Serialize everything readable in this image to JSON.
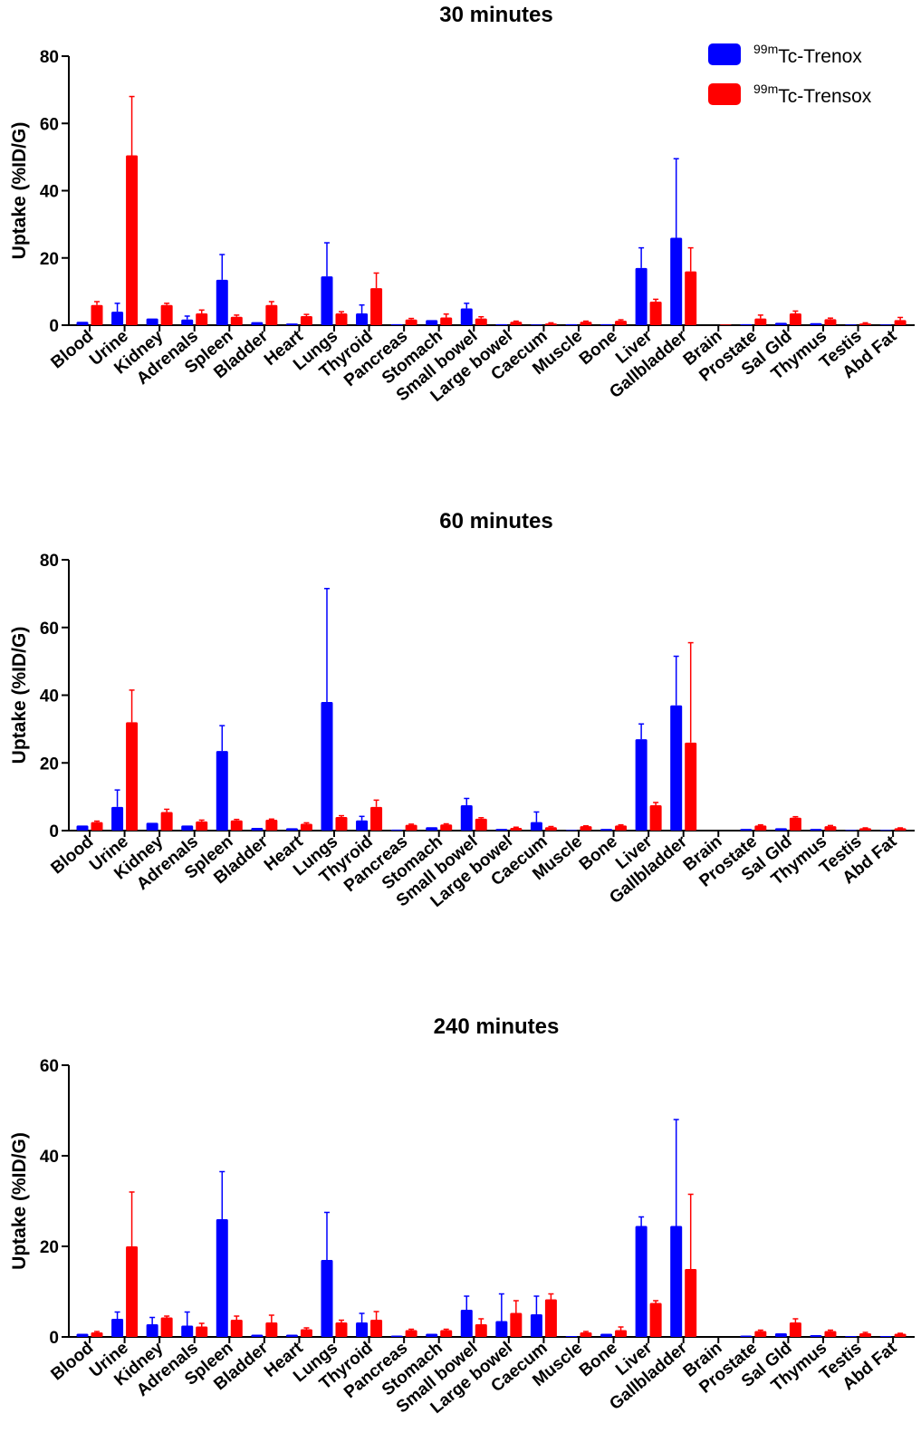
{
  "colors": {
    "trenox": "#0000ff",
    "trensox": "#ff0000",
    "axis": "#000000"
  },
  "legend": [
    {
      "sup": "99m",
      "name": "Tc-Trenox",
      "color": "#0000ff"
    },
    {
      "sup": "99m",
      "name": "Tc-Trensox",
      "color": "#ff0000"
    }
  ],
  "chart_data": [
    {
      "type": "bar",
      "title": "30 minutes",
      "xlabel": "",
      "ylabel": "Uptake (%ID/G)",
      "ylim": [
        0,
        80
      ],
      "yticks": [
        0,
        20,
        40,
        60,
        80
      ],
      "legend_position": "top-right",
      "categories": [
        "Blood",
        "Urine",
        "Kidney",
        "Adrenals",
        "Spleen",
        "Bladder",
        "Heart",
        "Lungs",
        "Thyroid",
        "Pancreas",
        "Stomach",
        "Small bowel",
        "Large bowel",
        "Caecum",
        "Muscle",
        "Bone",
        "Liver",
        "Gallbladder",
        "Brain",
        "Prostate",
        "Sal Gld",
        "Thymus",
        "Testis",
        "Abd Fat"
      ],
      "series": [
        {
          "name": "99mTc-Trenox",
          "color": "#0000ff",
          "values": [
            1.0,
            4.0,
            2.0,
            1.7,
            13.5,
            0.9,
            0.5,
            14.5,
            3.5,
            0.3,
            1.5,
            5.0,
            0.3,
            0.2,
            0.3,
            0.3,
            17.0,
            26.0,
            0,
            0.3,
            0.7,
            0.6,
            0.2,
            0.2
          ],
          "errors": [
            0,
            2.5,
            0,
            1.0,
            7.5,
            0,
            0,
            10.0,
            2.5,
            0,
            0,
            1.5,
            0,
            0,
            0,
            0,
            6.0,
            23.5,
            0,
            0,
            0,
            0,
            0,
            0
          ]
        },
        {
          "name": "99mTc-Trensox",
          "color": "#ff0000",
          "values": [
            6.0,
            50.5,
            6.0,
            3.5,
            2.5,
            6.0,
            2.7,
            3.5,
            11.0,
            1.7,
            2.3,
            2.0,
            1.0,
            0.5,
            1.0,
            1.3,
            7.0,
            16.0,
            0.2,
            2.0,
            3.5,
            1.8,
            0.5,
            1.5
          ],
          "errors": [
            1.0,
            17.5,
            0.5,
            1.0,
            0.5,
            1.0,
            0.5,
            0.5,
            4.5,
            0.3,
            1.0,
            0.5,
            0.2,
            0.2,
            0.2,
            0.3,
            0.7,
            7.0,
            0,
            1.0,
            0.7,
            0.3,
            0.2,
            0.8
          ]
        }
      ]
    },
    {
      "type": "bar",
      "title": "60 minutes",
      "xlabel": "",
      "ylabel": "Uptake (%ID/G)",
      "ylim": [
        0,
        80
      ],
      "yticks": [
        0,
        20,
        40,
        60,
        80
      ],
      "categories": [
        "Blood",
        "Urine",
        "Kidney",
        "Adrenals",
        "Spleen",
        "Bladder",
        "Heart",
        "Lungs",
        "Thyroid",
        "Pancreas",
        "Stomach",
        "Small bowel",
        "Large bowel",
        "Caecum",
        "Muscle",
        "Bone",
        "Liver",
        "Gallbladder",
        "Brain",
        "Prostate",
        "Sal Gld",
        "Thymus",
        "Testis",
        "Abd Fat"
      ],
      "series": [
        {
          "name": "99mTc-Trenox",
          "color": "#0000ff",
          "values": [
            1.5,
            7.0,
            2.3,
            1.5,
            23.5,
            0.8,
            0.7,
            38.0,
            3.0,
            0.3,
            1.0,
            7.5,
            0.5,
            2.5,
            0.2,
            0.5,
            27.0,
            37.0,
            0,
            0.5,
            0.7,
            0.5,
            0.2,
            0.2
          ],
          "errors": [
            0,
            5.0,
            0,
            0,
            7.5,
            0,
            0,
            33.5,
            1.2,
            0,
            0,
            2.0,
            0,
            3.0,
            0,
            0,
            4.5,
            14.5,
            0,
            0,
            0,
            0,
            0,
            0
          ]
        },
        {
          "name": "99mTc-Trensox",
          "color": "#ff0000",
          "values": [
            2.5,
            32.0,
            5.5,
            2.7,
            3.0,
            3.2,
            2.0,
            4.0,
            7.0,
            1.7,
            1.8,
            3.5,
            0.8,
            1.0,
            1.3,
            1.5,
            7.5,
            26.0,
            0,
            1.5,
            3.8,
            1.3,
            0.7,
            0.7
          ],
          "errors": [
            0.3,
            9.5,
            0.8,
            0.4,
            0.3,
            0.2,
            0.3,
            0.4,
            2.0,
            0.2,
            0.2,
            0.3,
            0.2,
            0.2,
            0.1,
            0.2,
            0.8,
            29.5,
            0,
            0.2,
            0.3,
            0.2,
            0.1,
            0.1
          ]
        }
      ]
    },
    {
      "type": "bar",
      "title": "240 minutes",
      "xlabel": "",
      "ylabel": "Uptake (%ID/G)",
      "ylim": [
        0,
        60
      ],
      "yticks": [
        0,
        20,
        40,
        60
      ],
      "categories": [
        "Blood",
        "Urine",
        "Kidney",
        "Adrenals",
        "Spleen",
        "Bladder",
        "Heart",
        "Lungs",
        "Thyroid",
        "Pancreas",
        "Stomach",
        "Small bowel",
        "Large bowel",
        "Caecum",
        "Muscle",
        "Bone",
        "Liver",
        "Gallbladder",
        "Brain",
        "Prostate",
        "Sal Gld",
        "Thymus",
        "Testis",
        "Abd Fat"
      ],
      "series": [
        {
          "name": "99mTc-Trenox",
          "color": "#0000ff",
          "values": [
            0.7,
            4.0,
            2.8,
            2.5,
            26.0,
            0.5,
            0.5,
            17.0,
            3.2,
            0.3,
            0.7,
            6.0,
            3.5,
            5.0,
            0.2,
            0.7,
            24.5,
            24.5,
            0,
            0.3,
            0.8,
            0.4,
            0.2,
            0.2
          ],
          "errors": [
            0,
            1.5,
            1.5,
            3.0,
            10.5,
            0,
            0,
            10.5,
            2.0,
            0,
            0,
            3.0,
            6.0,
            4.0,
            0,
            0,
            2.0,
            23.5,
            0,
            0,
            0,
            0,
            0,
            0
          ]
        },
        {
          "name": "99mTc-Trensox",
          "color": "#ff0000",
          "values": [
            1.0,
            20.0,
            4.3,
            2.3,
            3.8,
            3.2,
            1.7,
            3.2,
            3.8,
            1.5,
            1.5,
            2.8,
            5.3,
            8.3,
            1.0,
            1.5,
            7.5,
            15.0,
            0,
            1.3,
            3.2,
            1.3,
            0.8,
            0.7
          ],
          "errors": [
            0.2,
            12.0,
            0.3,
            0.7,
            0.8,
            1.6,
            0.3,
            0.5,
            1.8,
            0.2,
            0.2,
            1.2,
            2.7,
            1.2,
            0.2,
            0.7,
            0.5,
            16.5,
            0,
            0.2,
            0.8,
            0.2,
            0.2,
            0.1
          ]
        }
      ]
    }
  ]
}
